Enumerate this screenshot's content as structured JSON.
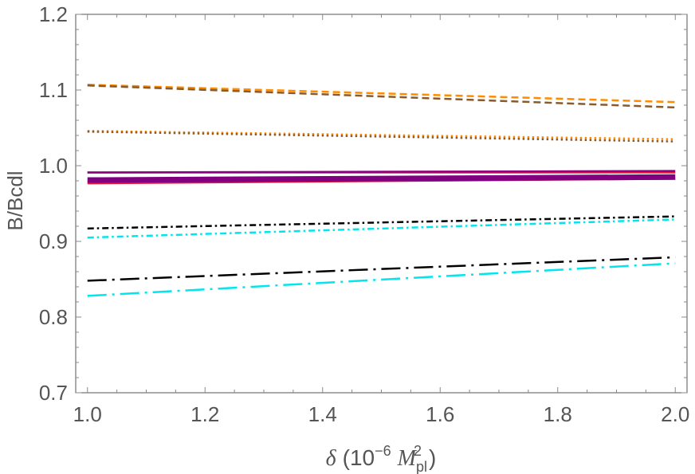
{
  "chart_data": {
    "type": "line",
    "title": "",
    "xlabel_parts": {
      "symbol": "δ",
      "open": "(10",
      "exponent": "−6",
      "mass": "M",
      "mass_sub": "pl",
      "mass_sup": "2",
      "close": ")"
    },
    "ylabel": "B/Bcdl",
    "xlim": [
      0.98,
      2.02
    ],
    "ylim": [
      0.7,
      1.2
    ],
    "x_ticks": [
      1.0,
      1.2,
      1.4,
      1.6,
      1.8,
      2.0
    ],
    "x_tick_labels": [
      "1.0",
      "1.2",
      "1.4",
      "1.6",
      "1.8",
      "2.0"
    ],
    "y_ticks": [
      0.7,
      0.8,
      0.9,
      1.0,
      1.1,
      1.2
    ],
    "y_tick_labels": [
      "0.7",
      "0.8",
      "0.9",
      "1.0",
      "1.1",
      "1.2"
    ],
    "grid": false,
    "series": [
      {
        "x": [
          1.0,
          2.0
        ],
        "y": [
          1.107,
          1.084
        ],
        "color": "#ff8c00",
        "dash": "dashed",
        "width": 2.5
      },
      {
        "x": [
          1.0,
          2.0
        ],
        "y": [
          1.106,
          1.077
        ],
        "color": "#8b5a2b",
        "dash": "dashed",
        "width": 2.5
      },
      {
        "x": [
          1.0,
          2.0
        ],
        "y": [
          1.046,
          1.035
        ],
        "color": "#ff8c00",
        "dash": "dotted",
        "width": 2.5
      },
      {
        "x": [
          1.0,
          2.0
        ],
        "y": [
          1.045,
          1.032
        ],
        "color": "#8b5a2b",
        "dash": "dotted",
        "width": 2.5
      },
      {
        "x": [
          1.0,
          2.0
        ],
        "y": [
          0.991,
          0.991
        ],
        "color": "#e8183a",
        "dash": "solid",
        "width": 2.5
      },
      {
        "x": [
          1.0,
          2.0
        ],
        "y": [
          0.991,
          0.993
        ],
        "color": "#8b0080",
        "dash": "solid",
        "width": 2.5
      },
      {
        "x": [
          1.0,
          2.0
        ],
        "y": [
          0.977,
          0.983
        ],
        "color": "#e8183a",
        "dash": "solid",
        "width": 3
      },
      {
        "x": [
          1.0,
          2.0
        ],
        "y": [
          0.981,
          0.985
        ],
        "color": "#800080",
        "dash": "solid",
        "width": 7
      },
      {
        "x": [
          1.0,
          2.0
        ],
        "y": [
          0.917,
          0.933
        ],
        "color": "#000000",
        "dash": "dashdot",
        "width": 2.5
      },
      {
        "x": [
          1.0,
          2.0
        ],
        "y": [
          0.905,
          0.929
        ],
        "color": "#00e5ee",
        "dash": "dashdot",
        "width": 2.5
      },
      {
        "x": [
          1.0,
          2.0
        ],
        "y": [
          0.848,
          0.879
        ],
        "color": "#000000",
        "dash": "longdashdot",
        "width": 2.5
      },
      {
        "x": [
          1.0,
          2.0
        ],
        "y": [
          0.828,
          0.871
        ],
        "color": "#00e5ee",
        "dash": "longdashdot",
        "width": 2.5
      }
    ]
  }
}
